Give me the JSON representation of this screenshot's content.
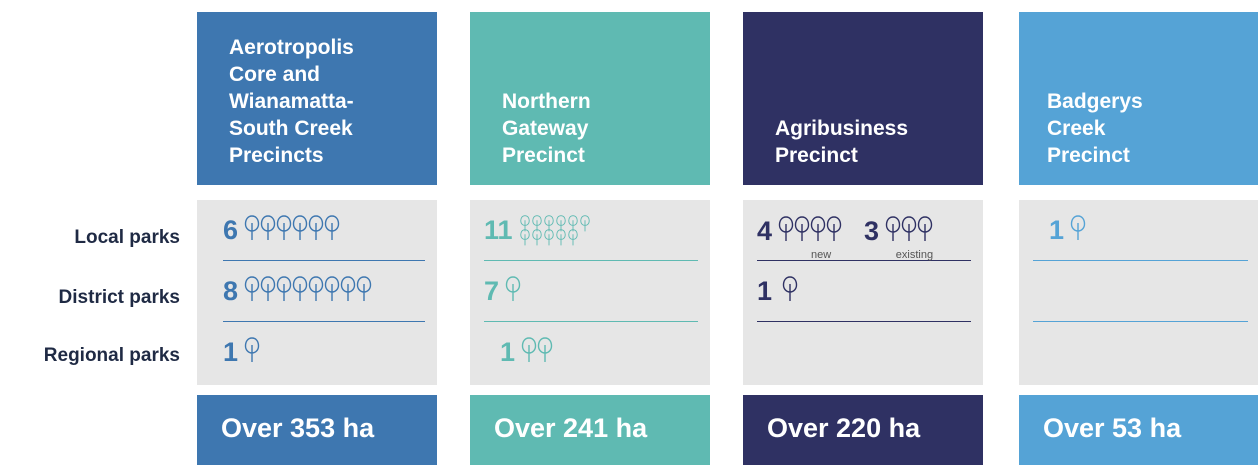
{
  "row_labels": [
    "Local parks",
    "District parks",
    "Regional parks"
  ],
  "precincts": [
    {
      "title": [
        "Aerotropolis",
        "Core and",
        "Wianamatta-",
        "South Creek",
        "Precincts"
      ],
      "rows": [
        [
          {
            "count": 6
          }
        ],
        [
          {
            "count": 8
          }
        ],
        [
          {
            "count": 1
          }
        ]
      ],
      "area": "Over 353 ha"
    },
    {
      "title": [
        "Northern",
        "Gateway",
        "Precinct"
      ],
      "rows": [
        [
          {
            "count": 11
          }
        ],
        [
          {
            "count": 7
          }
        ],
        [
          {
            "count": 1
          }
        ]
      ],
      "area": "Over 241 ha"
    },
    {
      "title": [
        "Agribusiness",
        "Precinct"
      ],
      "rows": [
        [
          {
            "count": 4,
            "label": "new"
          },
          {
            "count": 3,
            "label": "existing"
          }
        ],
        [
          {
            "count": 1
          }
        ],
        []
      ],
      "area": "Over 220 ha"
    },
    {
      "title": [
        "Badgerys",
        "Creek",
        "Precinct"
      ],
      "rows": [
        [
          {
            "count": 1
          }
        ],
        [],
        []
      ],
      "area": "Over 53 ha"
    }
  ]
}
